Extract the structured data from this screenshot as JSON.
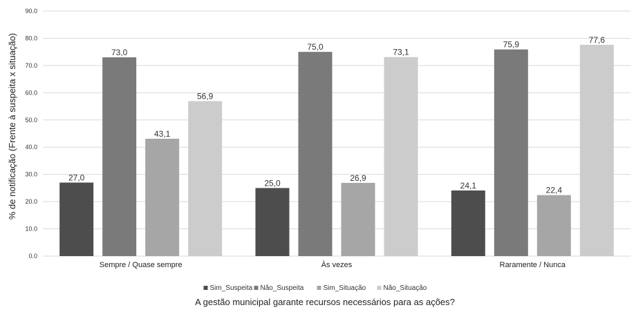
{
  "chart_data": {
    "type": "bar",
    "categories": [
      "Sempre / Quase sempre",
      "Às vezes",
      "Raramente / Nunca"
    ],
    "series": [
      {
        "name": "Sim_Suspeita",
        "values": [
          27.0,
          25.0,
          24.1
        ],
        "labels": [
          "27,0",
          "25,0",
          "24,1"
        ],
        "color": "#4d4d4d"
      },
      {
        "name": "Não_Suspeita",
        "values": [
          73.0,
          75.0,
          75.9
        ],
        "labels": [
          "73,0",
          "75,0",
          "75,9"
        ],
        "color": "#7a7a7a"
      },
      {
        "name": "Sim_Situação",
        "values": [
          43.1,
          26.9,
          22.4
        ],
        "labels": [
          "43,1",
          "26,9",
          "22,4"
        ],
        "color": "#a6a6a6"
      },
      {
        "name": "Não_Situação",
        "values": [
          56.9,
          73.1,
          77.6
        ],
        "labels": [
          "56,9",
          "73,1",
          "77,6"
        ],
        "color": "#cccccc"
      }
    ],
    "yticks": [
      "0.0",
      "10.0",
      "20.0",
      "30.0",
      "40.0",
      "50.0",
      "60.0",
      "70.0",
      "80.0",
      "90.0"
    ],
    "ylim": [
      0,
      90
    ],
    "ylabel": "% de notificação (Frente à suspeita x situação)",
    "xlabel": "A gestão municipal garante recursos necessários para as ações?",
    "grid": true,
    "legend_position": "bottom"
  }
}
